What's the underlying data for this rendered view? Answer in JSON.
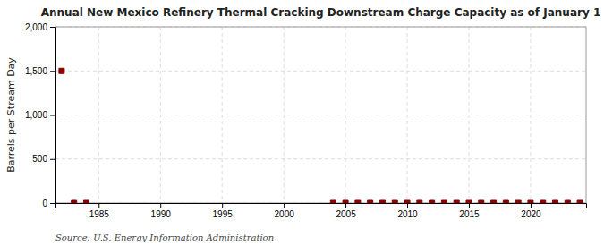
{
  "chart_data": {
    "type": "scatter",
    "title": "Annual New Mexico Refinery Thermal Cracking Downstream Charge Capacity as of January 1",
    "ylabel": "Barrels per Stream Day",
    "source": "Source: U.S. Energy Information Administration",
    "x": [
      1982,
      1983,
      1984,
      2004,
      2005,
      2006,
      2007,
      2008,
      2009,
      2010,
      2011,
      2012,
      2013,
      2014,
      2015,
      2016,
      2017,
      2018,
      2019,
      2020,
      2021,
      2022,
      2023,
      2024
    ],
    "values": [
      1500,
      0,
      0,
      0,
      0,
      0,
      0,
      0,
      0,
      0,
      0,
      0,
      0,
      0,
      0,
      0,
      0,
      0,
      0,
      0,
      0,
      0,
      0,
      0
    ],
    "color": "#8b0000",
    "marker": "square",
    "xlim": [
      1981.5,
      2024.5
    ],
    "ylim": [
      0,
      2000
    ],
    "xticks": [
      1985,
      1990,
      1995,
      2000,
      2005,
      2010,
      2015,
      2020
    ],
    "yticks": [
      0,
      500,
      {
        "value": 1000,
        "label": "1,000"
      },
      {
        "value": 1500,
        "label": "1,500"
      },
      {
        "value": 2000,
        "label": "2,000"
      }
    ],
    "grid": true
  }
}
